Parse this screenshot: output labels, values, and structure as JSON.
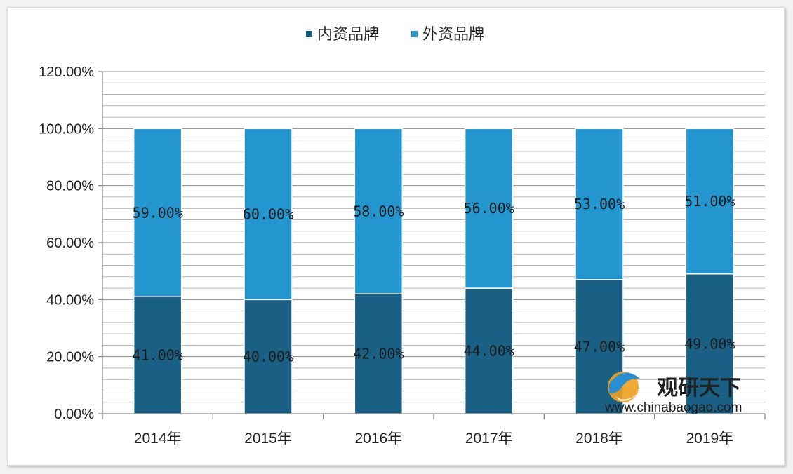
{
  "chart_data": {
    "type": "bar",
    "stacked": true,
    "categories": [
      "2014年",
      "2015年",
      "2016年",
      "2017年",
      "2018年",
      "2019年"
    ],
    "series": [
      {
        "name": "内资品牌",
        "values": [
          41,
          40,
          42,
          44,
          47,
          49
        ],
        "labels": [
          "41.00%",
          "40.00%",
          "42.00%",
          "44.00%",
          "47.00%",
          "49.00%"
        ],
        "color": "#1a5f84"
      },
      {
        "name": "外资品牌",
        "values": [
          59,
          60,
          58,
          56,
          53,
          51
        ],
        "labels": [
          "59.00%",
          "60.00%",
          "58.00%",
          "56.00%",
          "53.00%",
          "51.00%"
        ],
        "color": "#2396cf"
      }
    ],
    "ylim": [
      0,
      120
    ],
    "yticks": [
      0,
      20,
      40,
      60,
      80,
      100,
      120
    ],
    "ytick_labels": [
      "0.00%",
      "20.00%",
      "40.00%",
      "60.00%",
      "80.00%",
      "100.00%",
      "120.00%"
    ],
    "legend_position": "top-center",
    "grid": true
  },
  "watermark": {
    "brand": "观研天下",
    "url": "www.chinabaogao.com"
  }
}
